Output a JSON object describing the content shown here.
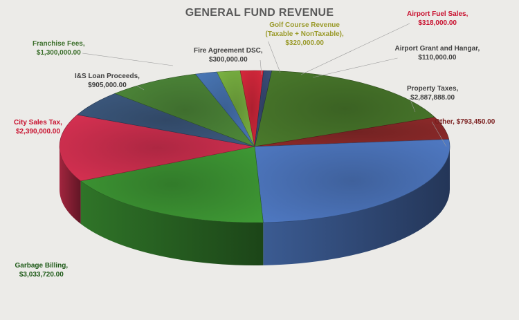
{
  "chart_data": {
    "type": "pie",
    "title": "GENERAL FUND REVENUE",
    "slices": [
      {
        "label": "Property Taxes,",
        "value_text": "$2,887,888.00",
        "value": 2887888,
        "color": "#4a7a2c",
        "label_color": "#3f3f3f"
      },
      {
        "label": "Other,",
        "value_text": "$793,450.00",
        "value": 793450,
        "color": "#8e2a2a",
        "label_color": "#7a1e1e"
      },
      {
        "label": "",
        "value_text": "",
        "value": 4300000,
        "color": "#4f79c3",
        "label_color": "#3f3f3f"
      },
      {
        "label": "Garbage Billing,",
        "value_text": "$3,033,720.00",
        "value": 3033720,
        "color": "#3f9a35",
        "label_color": "#1e5a18"
      },
      {
        "label": "City Sales Tax,",
        "value_text": "$2,390,000.00",
        "value": 2390000,
        "color": "#d83152",
        "label_color": "#c8102e"
      },
      {
        "label": "I&S Loan Proceeds,",
        "value_text": "$905,000.00",
        "value": 905000,
        "color": "#3d5a80",
        "label_color": "#3f3f3f"
      },
      {
        "label": "Franchise Fees,",
        "value_text": "$1,300,000.00",
        "value": 1300000,
        "color": "#4f8a3a",
        "label_color": "#3a6e2a"
      },
      {
        "label": "Fire Agreement DSC,",
        "value_text": "$300,000.00",
        "value": 300000,
        "color": "#4a78b8",
        "label_color": "#3f3f3f"
      },
      {
        "label": "Golf Course Revenue (Taxable + NonTaxable),",
        "value_text": "$320,000.00",
        "value": 320000,
        "color": "#7bb442",
        "label_color": "#9a9a2a"
      },
      {
        "label": "Airport Fuel Sales,",
        "value_text": "$318,000.00",
        "value": 318000,
        "color": "#d8283c",
        "label_color": "#c8102e"
      },
      {
        "label": "Airport Grant and Hangar,",
        "value_text": "$110,000.00",
        "value": 110000,
        "color": "#3b4f7a",
        "label_color": "#3f3f3f"
      }
    ]
  }
}
